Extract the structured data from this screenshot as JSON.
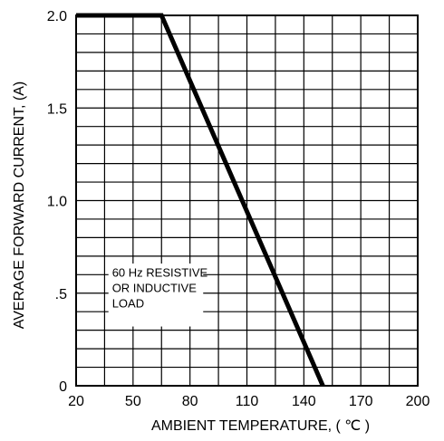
{
  "chart_data": {
    "type": "line",
    "xlabel": "AMBIENT TEMPERATURE, ( ℃ )",
    "ylabel": "AVERAGE FORWARD CURRENT, (A)",
    "xlim": [
      20,
      200
    ],
    "ylim": [
      0,
      2.0
    ],
    "x_tick_labels": [
      "20",
      "50",
      "80",
      "110",
      "140",
      "170",
      "200"
    ],
    "x_tick_values": [
      20,
      50,
      80,
      110,
      140,
      170,
      200
    ],
    "y_tick_labels": [
      "0",
      ".5",
      "1.0",
      "1.5",
      "2.0"
    ],
    "y_tick_values": [
      0,
      0.5,
      1.0,
      1.5,
      2.0
    ],
    "x_minor_step": 15,
    "y_minor_step": 0.1,
    "grid": true,
    "series": [
      {
        "x": [
          20,
          65,
          150
        ],
        "y": [
          2.0,
          2.0,
          0
        ]
      }
    ],
    "annotation": [
      "60 Hz RESISTIVE",
      "OR INDUCTIVE",
      "LOAD"
    ]
  }
}
